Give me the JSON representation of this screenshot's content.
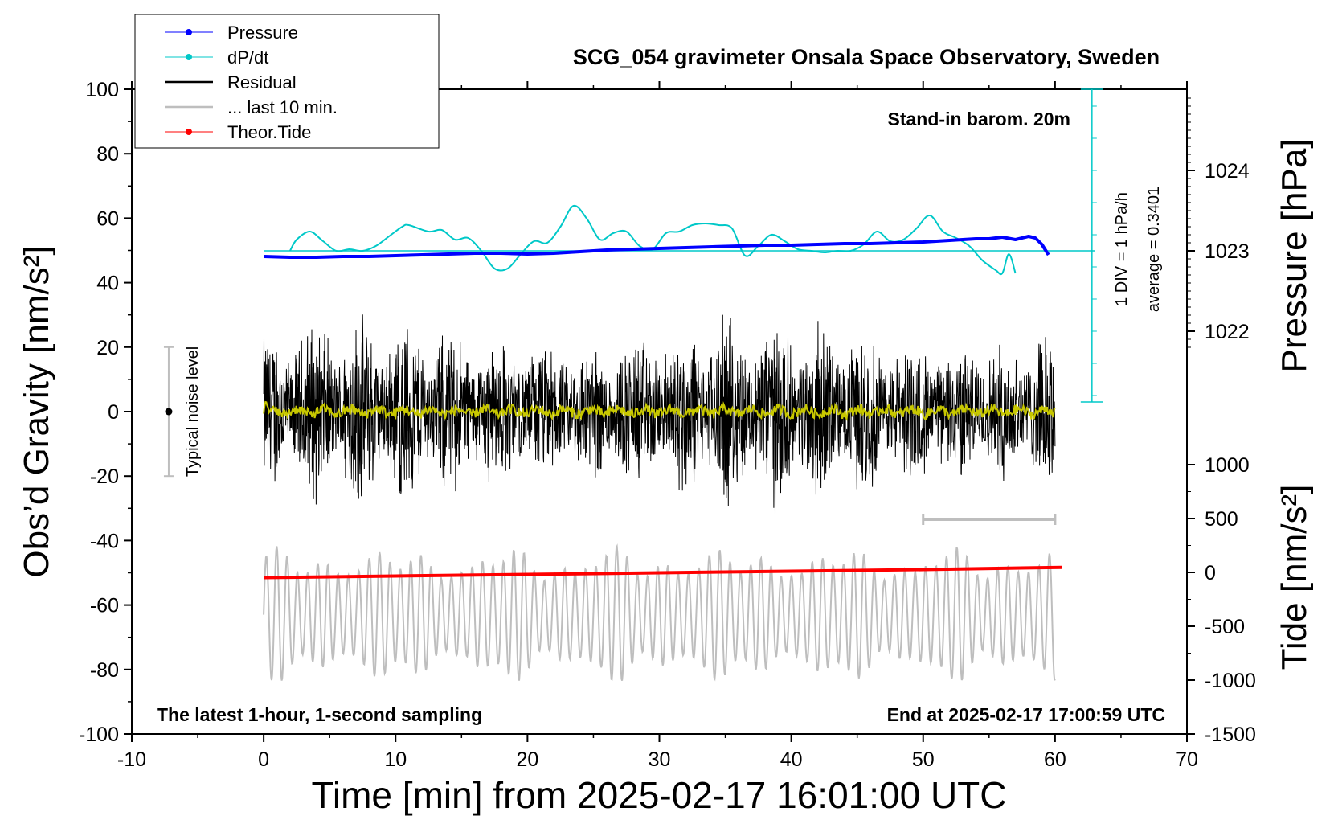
{
  "chart_data": {
    "type": "line",
    "title": "SCG_054 gravimeter Onsala Space Observatory, Sweden",
    "xlabel": "Time [min] from 2025-02-17 16:01:00 UTC",
    "ylabel_left": "Obs’d Gravity [nm/s²]",
    "ylabel_pressure": "Pressure [hPa]",
    "ylabel_tide": "Tide [nm/s²]",
    "xlim": [
      -10,
      70
    ],
    "ylim": [
      -100,
      100
    ],
    "x_ticks": [
      "-10",
      "0",
      "10",
      "20",
      "30",
      "40",
      "50",
      "60",
      "70"
    ],
    "y_ticks": [
      "-100",
      "-80",
      "-60",
      "-40",
      "-20",
      "0",
      "20",
      "40",
      "60",
      "80",
      "100"
    ],
    "pressure_ticks": [
      "1022",
      "1023",
      "1024"
    ],
    "tide_ticks": [
      "-1500",
      "-1000",
      "-500",
      "0",
      "500",
      "1000"
    ],
    "annotations": {
      "barometer": "Stand-in barom. 20m",
      "scale_note": "1 DIV = 1 hPa/h",
      "average_note": "average = 0.3401",
      "noise_label": "Typical noise level",
      "footer_left": "The latest 1-hour, 1-second sampling",
      "footer_right": "End at 2025-02-17 17:00:59 UTC"
    },
    "legend": [
      {
        "name": "Pressure",
        "color": "#0000ff",
        "marker": true
      },
      {
        "name": "dP/dt",
        "color": "#00c8c8",
        "marker": true
      },
      {
        "name": "Residual",
        "color": "#000000",
        "marker": false
      },
      {
        "name": "... last 10 min.",
        "color": "#bebebe",
        "marker": false
      },
      {
        "name": "Theor.Tide",
        "color": "#ff0000",
        "marker": true
      }
    ],
    "series": {
      "pressure_hpa": {
        "x": [
          0,
          2,
          4,
          6,
          8,
          10,
          12,
          14,
          16,
          18,
          20,
          22,
          24,
          26,
          28,
          30,
          32,
          34,
          36,
          38,
          40,
          42,
          44,
          46,
          48,
          50,
          52,
          54,
          55,
          56,
          57,
          58,
          58.5,
          59,
          59.5
        ],
        "values": [
          1022.93,
          1022.92,
          1022.92,
          1022.93,
          1022.93,
          1022.94,
          1022.95,
          1022.96,
          1022.97,
          1022.97,
          1022.96,
          1022.97,
          1022.99,
          1023.01,
          1023.02,
          1023.03,
          1023.04,
          1023.05,
          1023.06,
          1023.07,
          1023.07,
          1023.08,
          1023.09,
          1023.09,
          1023.1,
          1023.11,
          1023.13,
          1023.15,
          1023.15,
          1023.17,
          1023.14,
          1023.18,
          1023.16,
          1023.08,
          1022.95
        ]
      },
      "dpdt_hpa_per_h": {
        "x": [
          2,
          2.5,
          3.5,
          4.5,
          5.5,
          6.5,
          7.5,
          8.5,
          9.5,
          10.5,
          11,
          12.5,
          13.5,
          14.5,
          15.5,
          16.5,
          17.5,
          18.5,
          19.5,
          20.5,
          21.5,
          22.5,
          23.5,
          24.5,
          25.5,
          26.5,
          27.5,
          28.5,
          29.5,
          30.5,
          31.5,
          32.5,
          33.5,
          34.5,
          35.5,
          36.5,
          37.5,
          38.5,
          39.5,
          40.5,
          41.5,
          42.5,
          43.5,
          44.5,
          45.5,
          46.5,
          47.5,
          48.5,
          49.5,
          50.5,
          51.5,
          52.5,
          53.5,
          54.5,
          55.5,
          56,
          56.5,
          57
        ],
        "values": [
          0.0,
          0.35,
          0.6,
          0.3,
          0.0,
          0.05,
          0.0,
          0.15,
          0.45,
          0.75,
          0.8,
          0.6,
          0.65,
          0.35,
          0.4,
          0.0,
          -0.55,
          -0.55,
          -0.1,
          0.3,
          0.25,
          0.75,
          1.4,
          1.0,
          0.35,
          0.55,
          0.6,
          0.15,
          0.05,
          0.55,
          0.6,
          0.8,
          0.85,
          0.8,
          0.7,
          -0.15,
          0.15,
          0.5,
          0.3,
          0.05,
          0.0,
          -0.05,
          0.0,
          0.0,
          0.2,
          0.6,
          0.3,
          0.35,
          0.7,
          1.1,
          0.6,
          0.4,
          0.15,
          -0.3,
          -0.6,
          -0.7,
          -0.1,
          -0.7
        ]
      },
      "residual_nm_s2": {
        "x_range": [
          0,
          60
        ],
        "amplitude_range": [
          -39,
          40
        ]
      },
      "residual_smoothed_nm_s2": {
        "x_range": [
          0,
          60
        ],
        "amplitude_range": [
          -3,
          3
        ]
      },
      "last_10_min_nm_s2": {
        "x_range": [
          0,
          60
        ],
        "values_range": [
          -88,
          -38
        ]
      },
      "theoretical_tide_nm_s2": {
        "x": [
          0,
          10,
          20,
          30,
          40,
          50,
          60.5
        ],
        "values": [
          -51.5,
          -51.0,
          -50.5,
          -50.0,
          -49.5,
          -49.0,
          -48.3
        ]
      },
      "noise_level_bar": {
        "x": -7.2,
        "center": 0,
        "range": [
          -20,
          20
        ]
      },
      "last_10_min_bracket": {
        "x_range": [
          50,
          60
        ]
      }
    }
  }
}
